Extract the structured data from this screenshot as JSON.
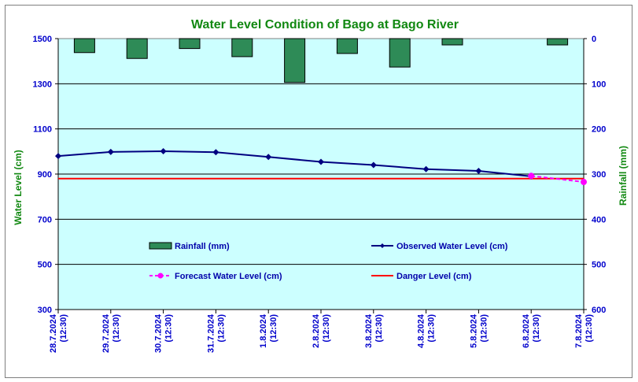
{
  "chart_data": {
    "type": "line",
    "title": "Water Level Condition of Bago at Bago River",
    "ylabel": "Water Level (cm)",
    "y2label": "Rainfall (mm)",
    "ylim": [
      300,
      1500
    ],
    "yticks": [
      300,
      500,
      700,
      900,
      1100,
      1300,
      1500
    ],
    "y2lim": [
      0,
      600
    ],
    "y2ticks": [
      0,
      100,
      200,
      300,
      400,
      500,
      600
    ],
    "y2_inverted": true,
    "categories": [
      "28.7.2024 (12:30)",
      "29.7.2024 (12:30)",
      "30.7.2024 (12:30)",
      "31.7.2024 (12:30)",
      "1.8.2024 (12:30)",
      "2.8.2024 (12:30)",
      "3.8.2024 (12:30)",
      "4.8.2024 (12:30)",
      "5.8.2024 (12:30)",
      "6.8.2024 (12:30)",
      "7.8.2024 (12:30)"
    ],
    "series": [
      {
        "name": "Rainfall (mm)",
        "kind": "bar",
        "axis": "right",
        "color": "#2e8b57",
        "values": [
          31,
          44,
          22,
          40,
          97,
          33,
          63,
          14,
          0,
          14,
          null
        ]
      },
      {
        "name": "Observed Water Level (cm)",
        "kind": "line",
        "axis": "left",
        "color": "#000080",
        "values": [
          980,
          998,
          1001,
          997,
          976,
          954,
          940,
          922,
          914,
          890,
          null
        ]
      },
      {
        "name": "Forecast Water Level (cm)",
        "kind": "dashed-line",
        "axis": "left",
        "color": "#ff00ff",
        "values": [
          null,
          null,
          null,
          null,
          null,
          null,
          null,
          null,
          null,
          892,
          865
        ]
      },
      {
        "name": "Danger Level (cm)",
        "kind": "hline",
        "axis": "left",
        "color": "#ff0000",
        "value": 880
      }
    ],
    "grid": true,
    "legend_position": "inside-bottom",
    "colors": {
      "plot_background": "#ccffff",
      "title": "#118811",
      "ticks": "#0000cc"
    }
  }
}
